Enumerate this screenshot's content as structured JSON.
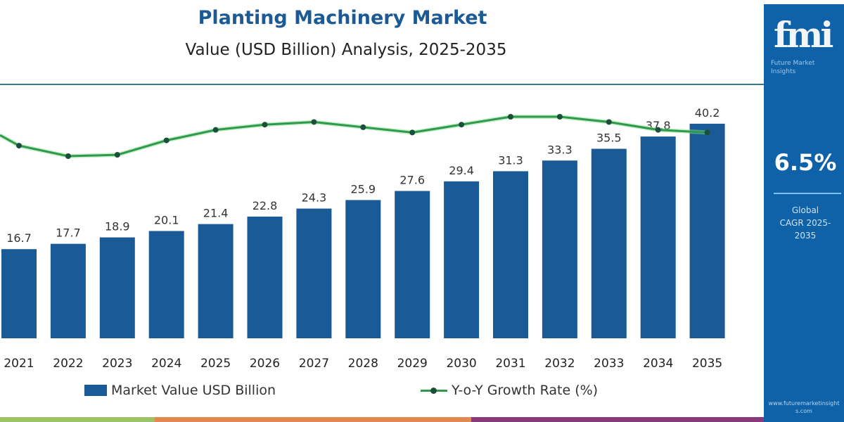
{
  "header": {
    "title": "Planting Machinery Market",
    "subtitle": "Value (USD Billion) Analysis, 2025-2035"
  },
  "panel": {
    "logo": "fmi",
    "logo_sub": "Future Market Insights",
    "cagr_value": "6.5%",
    "cagr_label_1": "Global",
    "cagr_label_2": "CAGR 2025-2035",
    "site": "www.futuremarketinsights.com"
  },
  "colors": {
    "bar": "#1a5a96",
    "line": "#2e9b4a",
    "marker": "#1c4f3a",
    "panel": "#0f62a8",
    "title": "#1c5a96"
  },
  "chart_data": {
    "type": "bar+line",
    "categories": [
      "2021",
      "2022",
      "2023",
      "2024",
      "2025",
      "2026",
      "2027",
      "2028",
      "2029",
      "2030",
      "2031",
      "2032",
      "2033",
      "2034",
      "2035"
    ],
    "series": [
      {
        "name": "Market Value USD Billion",
        "type": "bar",
        "values": [
          16.7,
          17.7,
          18.9,
          20.1,
          21.4,
          22.8,
          24.3,
          25.9,
          27.6,
          29.4,
          31.3,
          33.3,
          35.5,
          37.8,
          40.2
        ]
      },
      {
        "name": "Y-o-Y Growth Rate (%)",
        "type": "line",
        "values": [
          5.9,
          5.5,
          5.55,
          6.1,
          6.5,
          6.7,
          6.8,
          6.6,
          6.4,
          6.7,
          7.0,
          7.0,
          6.8,
          6.5,
          6.4
        ]
      }
    ],
    "legend": [
      "Market Value USD Billion",
      "Y-o-Y Growth Rate (%)"
    ],
    "legend_position": "bottom",
    "grid": false
  }
}
